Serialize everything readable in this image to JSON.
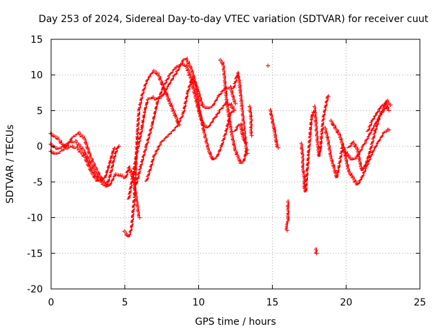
{
  "chart_data": {
    "type": "scatter",
    "title": "Day 253 of 2024, Sidereal Day-to-day VTEC variation (SDTVAR) for receiver cuut",
    "xlabel": "GPS time / hours",
    "ylabel": "SDTVAR / TECUs",
    "xlim": [
      0,
      25
    ],
    "ylim": [
      -20,
      15
    ],
    "xticks": [
      0,
      5,
      10,
      15,
      20,
      25
    ],
    "yticks": [
      -20,
      -15,
      -10,
      -5,
      0,
      5,
      10,
      15
    ],
    "grid": true,
    "marker": "+",
    "color": "#ff0000",
    "series": [
      {
        "name": "trace-1",
        "points": [
          [
            0.0,
            1.7
          ],
          [
            0.5,
            1.0
          ],
          [
            1.0,
            -0.3
          ],
          [
            1.5,
            1.2
          ],
          [
            1.9,
            1.8
          ],
          [
            2.3,
            1.0
          ],
          [
            2.7,
            -1.5
          ],
          [
            3.1,
            -3.3
          ],
          [
            3.5,
            -4.8
          ],
          [
            4.0,
            -5.6
          ],
          [
            4.4,
            -4.0
          ],
          [
            4.8,
            -4.2
          ],
          [
            5.1,
            -4.5
          ],
          [
            5.3,
            -3.0
          ],
          [
            5.6,
            -4.5
          ],
          [
            5.8,
            -7.0
          ],
          [
            6.0,
            -10.0
          ]
        ]
      },
      {
        "name": "trace-2",
        "points": [
          [
            0.0,
            0.2
          ],
          [
            0.5,
            -0.5
          ],
          [
            0.9,
            0.0
          ],
          [
            1.3,
            0.5
          ],
          [
            1.7,
            0.6
          ],
          [
            2.2,
            -0.5
          ],
          [
            2.7,
            -2.5
          ],
          [
            3.0,
            -3.8
          ],
          [
            3.4,
            -5.0
          ],
          [
            3.8,
            -5.8
          ],
          [
            4.1,
            -3.8
          ],
          [
            4.3,
            -1.8
          ],
          [
            4.5,
            -0.5
          ],
          [
            4.6,
            0.0
          ]
        ]
      },
      {
        "name": "trace-3",
        "points": [
          [
            0.0,
            -0.8
          ],
          [
            0.4,
            -1.2
          ],
          [
            0.9,
            -0.5
          ],
          [
            1.4,
            -0.1
          ],
          [
            1.8,
            -0.3
          ],
          [
            2.3,
            -1.5
          ],
          [
            2.8,
            -3.8
          ],
          [
            3.2,
            -5.0
          ],
          [
            3.7,
            -4.5
          ],
          [
            4.0,
            -2.5
          ],
          [
            4.3,
            -0.3
          ]
        ]
      },
      {
        "name": "trace-4",
        "points": [
          [
            5.0,
            -12.0
          ],
          [
            5.3,
            -12.8
          ],
          [
            5.5,
            -11.5
          ],
          [
            5.7,
            -7.0
          ],
          [
            5.8,
            -2.0
          ],
          [
            5.9,
            2.0
          ],
          [
            6.0,
            5.0
          ],
          [
            6.2,
            7.0
          ],
          [
            6.5,
            9.0
          ],
          [
            6.8,
            10.0
          ],
          [
            7.0,
            10.5
          ],
          [
            7.3,
            10.0
          ],
          [
            7.6,
            8.5
          ],
          [
            7.9,
            7.0
          ],
          [
            8.2,
            5.5
          ],
          [
            8.5,
            4.0
          ],
          [
            8.7,
            3.0
          ]
        ]
      },
      {
        "name": "trace-5",
        "points": [
          [
            5.3,
            -7.5
          ],
          [
            5.6,
            -4.0
          ],
          [
            5.9,
            -0.5
          ],
          [
            6.2,
            2.5
          ],
          [
            6.4,
            5.0
          ],
          [
            6.6,
            6.5
          ],
          [
            6.9,
            6.8
          ],
          [
            7.2,
            6.5
          ],
          [
            7.6,
            7.0
          ],
          [
            8.0,
            8.5
          ],
          [
            8.4,
            9.8
          ],
          [
            8.8,
            11.2
          ],
          [
            9.0,
            12.0
          ],
          [
            9.2,
            12.2
          ],
          [
            9.5,
            11.0
          ],
          [
            9.8,
            9.0
          ],
          [
            10.1,
            7.0
          ],
          [
            10.3,
            5.6
          ],
          [
            10.7,
            5.2
          ],
          [
            11.0,
            5.6
          ],
          [
            11.4,
            7.0
          ],
          [
            11.8,
            8.0
          ],
          [
            12.2,
            8.2
          ],
          [
            12.5,
            6.0
          ]
        ]
      },
      {
        "name": "trace-6",
        "points": [
          [
            5.8,
            -5.5
          ],
          [
            6.1,
            -3.0
          ],
          [
            6.5,
            0.0
          ],
          [
            6.9,
            3.0
          ],
          [
            7.3,
            6.5
          ],
          [
            7.7,
            8.5
          ],
          [
            8.1,
            10.0
          ],
          [
            8.5,
            11.0
          ],
          [
            8.9,
            11.5
          ],
          [
            9.2,
            11.2
          ],
          [
            9.5,
            9.5
          ],
          [
            9.8,
            7.0
          ],
          [
            10.1,
            4.5
          ],
          [
            10.4,
            2.8
          ],
          [
            10.7,
            2.6
          ],
          [
            11.1,
            3.8
          ],
          [
            11.5,
            5.0
          ],
          [
            11.9,
            6.0
          ],
          [
            12.2,
            5.8
          ],
          [
            12.4,
            5.2
          ]
        ]
      },
      {
        "name": "trace-7",
        "points": [
          [
            6.5,
            -5.0
          ],
          [
            6.8,
            -3.0
          ],
          [
            7.0,
            -1.5
          ],
          [
            7.5,
            0.5
          ],
          [
            8.0,
            1.5
          ],
          [
            8.5,
            2.5
          ],
          [
            9.0,
            4.5
          ],
          [
            9.3,
            7.5
          ],
          [
            9.6,
            9.5
          ],
          [
            9.8,
            8.5
          ],
          [
            10.1,
            5.0
          ],
          [
            10.4,
            2.0
          ],
          [
            10.7,
            -0.5
          ],
          [
            11.0,
            -2.0
          ],
          [
            11.3,
            -1.5
          ],
          [
            11.6,
            0.0
          ],
          [
            11.9,
            2.0
          ],
          [
            12.2,
            4.5
          ],
          [
            12.4,
            5.0
          ]
        ]
      },
      {
        "name": "trace-8",
        "points": [
          [
            11.5,
            12.0
          ],
          [
            11.7,
            11.5
          ],
          [
            11.8,
            9.5
          ],
          [
            11.9,
            7.0
          ],
          [
            12.1,
            4.0
          ],
          [
            12.3,
            1.5
          ],
          [
            12.5,
            -0.5
          ],
          [
            12.7,
            -1.5
          ],
          [
            12.9,
            -2.5
          ],
          [
            13.1,
            -2.2
          ],
          [
            13.3,
            -0.5
          ]
        ]
      },
      {
        "name": "trace-9",
        "points": [
          [
            12.4,
            8.0
          ],
          [
            12.6,
            9.5
          ],
          [
            12.7,
            10.2
          ],
          [
            12.8,
            9.0
          ],
          [
            12.9,
            7.0
          ],
          [
            13.0,
            5.0
          ],
          [
            13.1,
            3.0
          ],
          [
            13.2,
            1.0
          ],
          [
            13.3,
            -1.0
          ]
        ]
      },
      {
        "name": "trace-10",
        "points": [
          [
            12.5,
            2.0
          ],
          [
            12.7,
            2.8
          ],
          [
            12.9,
            3.0
          ],
          [
            13.0,
            1.5
          ],
          [
            13.2,
            0.5
          ]
        ]
      },
      {
        "name": "trace-11",
        "points": [
          [
            13.5,
            5.5
          ],
          [
            13.6,
            4.0
          ],
          [
            13.6,
            2.5
          ],
          [
            13.6,
            1.5
          ]
        ]
      },
      {
        "name": "trace-12",
        "points": [
          [
            14.7,
            11.3
          ]
        ]
      },
      {
        "name": "trace-13",
        "points": [
          [
            14.9,
            5.0
          ],
          [
            15.0,
            4.0
          ],
          [
            15.1,
            3.0
          ],
          [
            15.2,
            2.0
          ],
          [
            15.3,
            0.5
          ],
          [
            15.4,
            -0.2
          ]
        ]
      },
      {
        "name": "trace-14",
        "points": [
          [
            16.1,
            -7.8
          ],
          [
            16.1,
            -8.8
          ],
          [
            16.1,
            -9.5
          ],
          [
            16.1,
            -10.5
          ],
          [
            16.0,
            -11.0
          ],
          [
            16.0,
            -11.8
          ]
        ]
      },
      {
        "name": "trace-15",
        "points": [
          [
            17.0,
            0.3
          ],
          [
            17.1,
            -1.5
          ],
          [
            17.1,
            -3.0
          ],
          [
            17.2,
            -4.5
          ],
          [
            17.2,
            -6.0
          ],
          [
            17.3,
            -6.5
          ],
          [
            17.4,
            -3.5
          ],
          [
            17.5,
            -1.0
          ],
          [
            17.6,
            1.5
          ],
          [
            17.7,
            4.0
          ],
          [
            17.8,
            4.8
          ]
        ]
      },
      {
        "name": "trace-16",
        "points": [
          [
            17.9,
            5.5
          ],
          [
            18.0,
            3.0
          ],
          [
            18.1,
            0.5
          ],
          [
            18.2,
            -1.5
          ],
          [
            18.3,
            -0.5
          ],
          [
            18.4,
            2.0
          ],
          [
            18.5,
            4.0
          ],
          [
            18.7,
            6.0
          ],
          [
            18.8,
            7.0
          ]
        ]
      },
      {
        "name": "trace-17",
        "points": [
          [
            18.0,
            -14.5
          ],
          [
            18.0,
            -15.0
          ]
        ]
      },
      {
        "name": "trace-18",
        "points": [
          [
            18.6,
            2.5
          ],
          [
            18.8,
            1.0
          ],
          [
            19.0,
            -1.5
          ],
          [
            19.2,
            -3.0
          ],
          [
            19.4,
            -4.5
          ],
          [
            19.6,
            -2.5
          ],
          [
            19.8,
            0.0
          ],
          [
            20.0,
            -1.5
          ],
          [
            20.2,
            -3.5
          ],
          [
            20.5,
            -4.5
          ],
          [
            20.8,
            -5.5
          ],
          [
            21.1,
            -4.5
          ],
          [
            21.4,
            -3.0
          ],
          [
            21.8,
            -1.0
          ],
          [
            22.2,
            0.5
          ],
          [
            22.6,
            1.8
          ],
          [
            22.9,
            2.3
          ]
        ]
      },
      {
        "name": "trace-19",
        "points": [
          [
            19.0,
            3.5
          ],
          [
            19.3,
            2.5
          ],
          [
            19.6,
            1.5
          ],
          [
            19.9,
            -0.5
          ],
          [
            20.2,
            -1.5
          ],
          [
            20.5,
            -2.0
          ],
          [
            20.8,
            -1.5
          ],
          [
            21.2,
            0.0
          ],
          [
            21.6,
            1.5
          ],
          [
            22.0,
            3.0
          ],
          [
            22.4,
            4.5
          ],
          [
            22.8,
            5.5
          ]
        ]
      },
      {
        "name": "trace-20",
        "points": [
          [
            20.2,
            -0.3
          ],
          [
            20.5,
            0.5
          ],
          [
            20.8,
            -0.5
          ],
          [
            21.1,
            -3.5
          ],
          [
            21.4,
            -2.5
          ],
          [
            21.7,
            -0.5
          ],
          [
            22.0,
            2.0
          ],
          [
            22.3,
            4.0
          ],
          [
            22.6,
            5.5
          ],
          [
            22.8,
            6.3
          ],
          [
            23.0,
            5.8
          ]
        ]
      },
      {
        "name": "trace-21",
        "points": [
          [
            21.5,
            2.0
          ],
          [
            21.8,
            3.5
          ],
          [
            22.1,
            4.5
          ],
          [
            22.4,
            5.5
          ],
          [
            22.7,
            6.0
          ],
          [
            22.9,
            5.0
          ]
        ]
      }
    ]
  }
}
